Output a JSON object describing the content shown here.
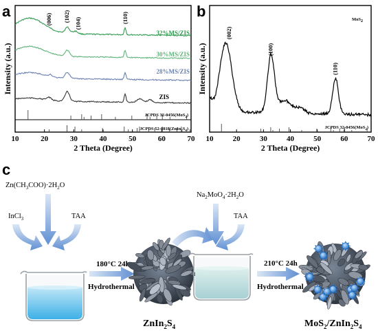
{
  "panels": {
    "a": "a",
    "b": "b",
    "c": "c"
  },
  "chart_data": [
    {
      "type": "line",
      "panel": "a",
      "xlabel": "2 Theta (Degree)",
      "ylabel": "Intensity (a.u.)",
      "xlim": [
        10,
        70
      ],
      "xticks": [
        10,
        20,
        30,
        40,
        50,
        60,
        70
      ],
      "grid": false,
      "series": [
        {
          "name": "32%MS/ZIS",
          "color": "#2f9a4f",
          "peaks": [
            13.5,
            27.6,
            30.5,
            47.5
          ]
        },
        {
          "name": "30%MS/ZIS",
          "color": "#5fb37a",
          "peaks": [
            27.6,
            47.5
          ]
        },
        {
          "name": "28%MS/ZIS",
          "color": "#6a7fb0",
          "peaks": [
            22,
            27.6,
            47.5
          ]
        },
        {
          "name": "ZIS",
          "color": "#333333",
          "peaks": [
            21.5,
            27.6,
            28.5,
            47.5,
            52.5,
            56
          ]
        }
      ],
      "peak_labels": [
        {
          "text": "(006)",
          "x": 21.5
        },
        {
          "text": "(102)",
          "x": 27.6
        },
        {
          "text": "(104)",
          "x": 31.5
        },
        {
          "text": "(110)",
          "x": 47.5
        }
      ],
      "references": [
        {
          "label": "JCPDS 32-0456(MoS",
          "sub": "2",
          "tail": ")",
          "lines": [
            14.4,
            29.0,
            32.7,
            33.5,
            35.9,
            39.5,
            44.2,
            49.8,
            55.0,
            56.0,
            58.3,
            60.2,
            62.8,
            68.5
          ]
        },
        {
          "label": "JCPDS 52-0818(ZnIn",
          "sub": "2",
          "mid": "S",
          "sub2": "4",
          "tail": ")",
          "lines": [
            21.6,
            27.7,
            30.4,
            32.7,
            39.8,
            47.2,
            48.6,
            51.6,
            52.4,
            55.6,
            57.6,
            60.2,
            62.6,
            65.2,
            66.7,
            69.6
          ]
        }
      ]
    },
    {
      "type": "line",
      "panel": "b",
      "title": "MoS",
      "title_sub": "2",
      "xlabel": "2 Theta (Degree)",
      "ylabel": "Intensity (a.u.)",
      "xlim": [
        10,
        70
      ],
      "xticks": [
        10,
        20,
        30,
        40,
        50,
        60,
        70
      ],
      "grid": false,
      "series": [
        {
          "color": "#000000",
          "peaks": [
            15.5,
            32.5,
            56.5
          ]
        }
      ],
      "peak_labels": [
        {
          "text": "(002)",
          "x": 15.5
        },
        {
          "text": "(100)",
          "x": 32.5
        },
        {
          "text": "(110)",
          "x": 56.5
        }
      ],
      "references": [
        {
          "label": "JCPDS 32-0456(MoS",
          "sub": "2",
          "tail": ")",
          "lines": [
            14.4,
            29.0,
            32.7,
            33.5,
            35.9,
            39.5,
            44.2,
            49.8,
            55.0,
            56.0,
            58.3,
            60.2,
            62.8,
            68.5
          ]
        }
      ]
    }
  ],
  "scheme": {
    "reagent1": "Zn(CH",
    "reagent1_sub": "3",
    "reagent1_mid": "COO)·2H",
    "reagent1_sub2": "2",
    "reagent1_tail": "O",
    "reagent2": "InCl",
    "reagent2_sub": "3",
    "reagent3": "TAA",
    "step1_condition": "180°C 24h",
    "step1_method": "Hydrothermal",
    "product1": "ZnIn",
    "product1_sub": "2",
    "product1_tail": "S",
    "product1_sub2": "4",
    "reagent4": "Na",
    "reagent4_sub": "2",
    "reagent4_mid": "MoO",
    "reagent4_sub2": "4",
    "reagent4_tail": "·2H",
    "reagent4_sub3": "2",
    "reagent4_end": "O",
    "reagent5": "TAA",
    "step2_condition": "210°C 24h",
    "step2_method": "Hydrothermal",
    "product2": "MoS",
    "product2_sub": "2",
    "product2_mid": "/ZnIn",
    "product2_sub2": "2",
    "product2_tail": "S",
    "product2_sub3": "4"
  }
}
